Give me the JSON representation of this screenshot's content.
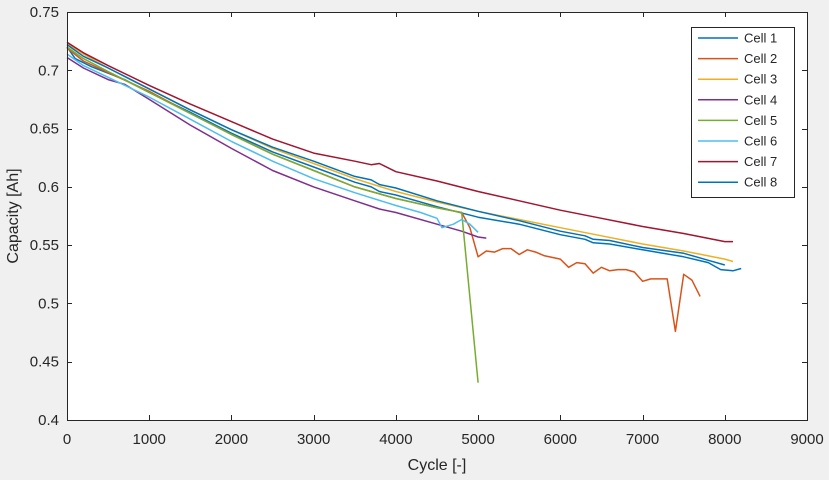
{
  "chart_data": {
    "type": "line",
    "title": "",
    "xlabel": "Cycle [-]",
    "ylabel": "Capacity [Ah]",
    "xlim": [
      0,
      9000
    ],
    "ylim": [
      0.4,
      0.75
    ],
    "xticks": [
      0,
      1000,
      2000,
      3000,
      4000,
      5000,
      6000,
      7000,
      8000,
      9000
    ],
    "yticks": [
      0.4,
      0.45,
      0.5,
      0.55,
      0.6,
      0.65,
      0.7,
      0.75
    ],
    "grid": false,
    "legend_position": "top-right",
    "series": [
      {
        "name": "Cell 1",
        "color": "#0072BD",
        "points": [
          [
            0,
            0.72
          ],
          [
            100,
            0.71
          ],
          [
            300,
            0.703
          ],
          [
            700,
            0.692
          ],
          [
            1000,
            0.681
          ],
          [
            1500,
            0.664
          ],
          [
            2000,
            0.646
          ],
          [
            2500,
            0.63
          ],
          [
            3000,
            0.617
          ],
          [
            3500,
            0.604
          ],
          [
            3700,
            0.6
          ],
          [
            3800,
            0.596
          ],
          [
            4000,
            0.593
          ],
          [
            4500,
            0.583
          ],
          [
            5000,
            0.574
          ],
          [
            5500,
            0.568
          ],
          [
            6000,
            0.559
          ],
          [
            6300,
            0.555
          ],
          [
            6400,
            0.552
          ],
          [
            6600,
            0.551
          ],
          [
            7000,
            0.546
          ],
          [
            7500,
            0.54
          ],
          [
            7800,
            0.535
          ],
          [
            7950,
            0.529
          ],
          [
            8100,
            0.528
          ],
          [
            8200,
            0.53
          ]
        ]
      },
      {
        "name": "Cell 2",
        "color": "#D95319",
        "points": [
          [
            0,
            0.719
          ],
          [
            200,
            0.708
          ],
          [
            500,
            0.698
          ],
          [
            1000,
            0.682
          ],
          [
            1500,
            0.663
          ],
          [
            2000,
            0.645
          ],
          [
            2500,
            0.628
          ],
          [
            3000,
            0.614
          ],
          [
            3500,
            0.6
          ],
          [
            4000,
            0.59
          ],
          [
            4500,
            0.582
          ],
          [
            4800,
            0.578
          ],
          [
            4900,
            0.565
          ],
          [
            5000,
            0.54
          ],
          [
            5100,
            0.545
          ],
          [
            5200,
            0.544
          ],
          [
            5300,
            0.547
          ],
          [
            5400,
            0.547
          ],
          [
            5500,
            0.542
          ],
          [
            5600,
            0.546
          ],
          [
            5700,
            0.544
          ],
          [
            5800,
            0.541
          ],
          [
            6000,
            0.538
          ],
          [
            6100,
            0.531
          ],
          [
            6200,
            0.535
          ],
          [
            6300,
            0.534
          ],
          [
            6400,
            0.526
          ],
          [
            6500,
            0.531
          ],
          [
            6600,
            0.528
          ],
          [
            6700,
            0.529
          ],
          [
            6800,
            0.529
          ],
          [
            6900,
            0.527
          ],
          [
            7000,
            0.519
          ],
          [
            7100,
            0.521
          ],
          [
            7300,
            0.521
          ],
          [
            7400,
            0.476
          ],
          [
            7500,
            0.525
          ],
          [
            7600,
            0.52
          ],
          [
            7700,
            0.506
          ]
        ]
      },
      {
        "name": "Cell 3",
        "color": "#EDB120",
        "points": [
          [
            0,
            0.723
          ],
          [
            200,
            0.714
          ],
          [
            500,
            0.702
          ],
          [
            1000,
            0.684
          ],
          [
            1500,
            0.666
          ],
          [
            2000,
            0.649
          ],
          [
            2500,
            0.633
          ],
          [
            3000,
            0.62
          ],
          [
            3500,
            0.607
          ],
          [
            4000,
            0.596
          ],
          [
            4500,
            0.587
          ],
          [
            5000,
            0.579
          ],
          [
            5500,
            0.572
          ],
          [
            6000,
            0.565
          ],
          [
            6500,
            0.558
          ],
          [
            7000,
            0.551
          ],
          [
            7500,
            0.545
          ],
          [
            8000,
            0.538
          ],
          [
            8100,
            0.536
          ]
        ]
      },
      {
        "name": "Cell 4",
        "color": "#7E2F8E",
        "points": [
          [
            0,
            0.711
          ],
          [
            200,
            0.702
          ],
          [
            500,
            0.692
          ],
          [
            700,
            0.688
          ],
          [
            1000,
            0.675
          ],
          [
            1500,
            0.653
          ],
          [
            2000,
            0.633
          ],
          [
            2500,
            0.614
          ],
          [
            3000,
            0.6
          ],
          [
            3500,
            0.588
          ],
          [
            3800,
            0.581
          ],
          [
            4000,
            0.578
          ],
          [
            4500,
            0.568
          ],
          [
            4800,
            0.562
          ],
          [
            5000,
            0.557
          ],
          [
            5100,
            0.556
          ]
        ]
      },
      {
        "name": "Cell 5",
        "color": "#77AC30",
        "points": [
          [
            0,
            0.72
          ],
          [
            200,
            0.71
          ],
          [
            500,
            0.699
          ],
          [
            1000,
            0.681
          ],
          [
            1500,
            0.663
          ],
          [
            2000,
            0.645
          ],
          [
            2500,
            0.628
          ],
          [
            3000,
            0.614
          ],
          [
            3500,
            0.6
          ],
          [
            4000,
            0.59
          ],
          [
            4500,
            0.582
          ],
          [
            4800,
            0.578
          ],
          [
            5000,
            0.432
          ]
        ]
      },
      {
        "name": "Cell 6",
        "color": "#4DBEEE",
        "points": [
          [
            0,
            0.714
          ],
          [
            200,
            0.704
          ],
          [
            500,
            0.694
          ],
          [
            1000,
            0.677
          ],
          [
            1500,
            0.658
          ],
          [
            2000,
            0.639
          ],
          [
            2500,
            0.622
          ],
          [
            3000,
            0.607
          ],
          [
            3500,
            0.595
          ],
          [
            4000,
            0.584
          ],
          [
            4300,
            0.578
          ],
          [
            4500,
            0.573
          ],
          [
            4560,
            0.565
          ],
          [
            4700,
            0.568
          ],
          [
            4800,
            0.572
          ],
          [
            4900,
            0.568
          ],
          [
            5000,
            0.561
          ]
        ]
      },
      {
        "name": "Cell 7",
        "color": "#A2142F",
        "points": [
          [
            0,
            0.724
          ],
          [
            200,
            0.715
          ],
          [
            500,
            0.704
          ],
          [
            1000,
            0.687
          ],
          [
            1500,
            0.671
          ],
          [
            2000,
            0.656
          ],
          [
            2500,
            0.641
          ],
          [
            3000,
            0.629
          ],
          [
            3500,
            0.622
          ],
          [
            3700,
            0.619
          ],
          [
            3800,
            0.62
          ],
          [
            4000,
            0.613
          ],
          [
            4500,
            0.605
          ],
          [
            5000,
            0.596
          ],
          [
            5500,
            0.588
          ],
          [
            6000,
            0.58
          ],
          [
            6500,
            0.573
          ],
          [
            7000,
            0.566
          ],
          [
            7500,
            0.56
          ],
          [
            8000,
            0.553
          ],
          [
            8100,
            0.553
          ]
        ]
      },
      {
        "name": "Cell 8",
        "color": "#0072BD",
        "points": [
          [
            0,
            0.722
          ],
          [
            200,
            0.712
          ],
          [
            500,
            0.702
          ],
          [
            1000,
            0.684
          ],
          [
            1500,
            0.666
          ],
          [
            2000,
            0.649
          ],
          [
            2500,
            0.634
          ],
          [
            3000,
            0.622
          ],
          [
            3500,
            0.609
          ],
          [
            3700,
            0.606
          ],
          [
            3800,
            0.602
          ],
          [
            4000,
            0.599
          ],
          [
            4500,
            0.588
          ],
          [
            5000,
            0.579
          ],
          [
            5500,
            0.571
          ],
          [
            6000,
            0.562
          ],
          [
            6300,
            0.558
          ],
          [
            6400,
            0.555
          ],
          [
            6600,
            0.554
          ],
          [
            7000,
            0.548
          ],
          [
            7500,
            0.543
          ],
          [
            7800,
            0.537
          ],
          [
            8000,
            0.533
          ]
        ]
      }
    ]
  }
}
